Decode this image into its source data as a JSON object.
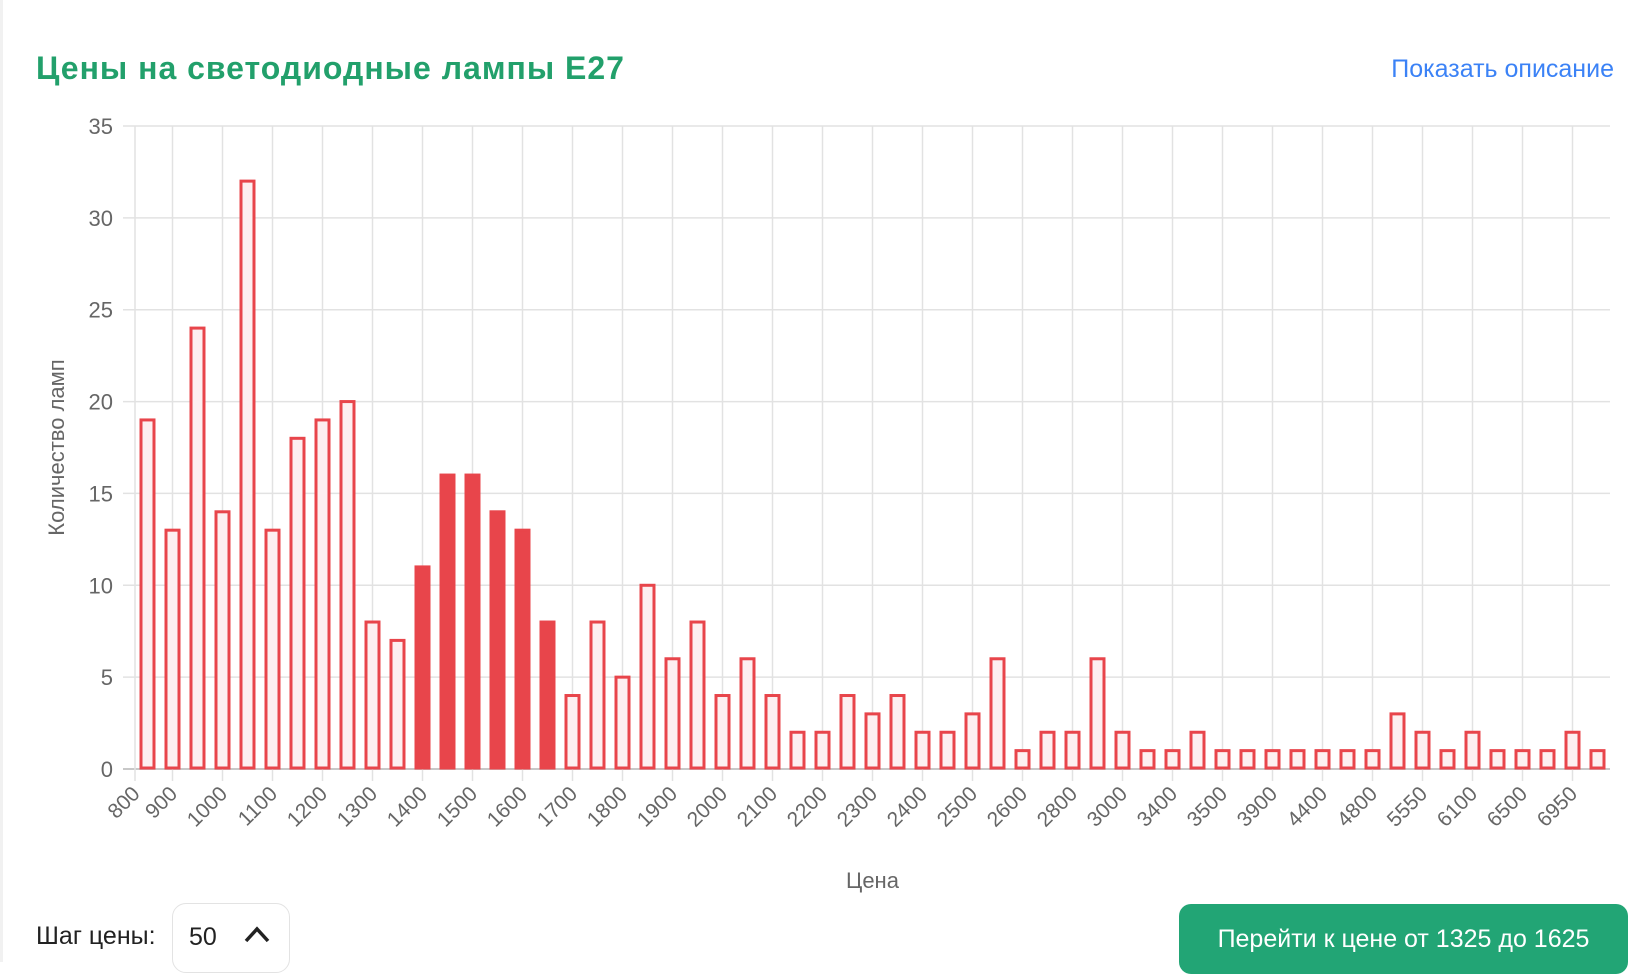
{
  "header": {
    "title": "Цены на светодиодные лампы E27",
    "show_description_link": "Показать описание"
  },
  "controls": {
    "step_label": "Шаг цены:",
    "step_value": "50",
    "go_button_label": "Перейти к цене от 1325 до 1625"
  },
  "colors": {
    "title": "#22a06b",
    "link": "#3b82f6",
    "bar_border": "#e8454b",
    "bar_fill": "#fdeff0",
    "bar_selected_fill": "#e8454b",
    "button": "#22a575",
    "grid": "#e2e2e2"
  },
  "chart_data": {
    "type": "bar",
    "title": "Цены на светодиодные лампы E27",
    "xlabel": "Цена",
    "ylabel": "Количество ламп",
    "ylim": [
      0,
      35
    ],
    "y_ticks": [
      0,
      5,
      10,
      15,
      20,
      25,
      30,
      35
    ],
    "grid": true,
    "x_tick_labels": [
      "800",
      "900",
      "1000",
      "1100",
      "1200",
      "1300",
      "1400",
      "1500",
      "1600",
      "1700",
      "1800",
      "1900",
      "2000",
      "2100",
      "2200",
      "2300",
      "2400",
      "2500",
      "2600",
      "2800",
      "3000",
      "3400",
      "3500",
      "3900",
      "4400",
      "4800",
      "5550",
      "6100",
      "6500",
      "6950"
    ],
    "values": [
      19,
      13,
      24,
      14,
      32,
      13,
      18,
      19,
      20,
      8,
      7,
      11,
      16,
      16,
      14,
      13,
      8,
      4,
      8,
      5,
      10,
      6,
      8,
      4,
      6,
      4,
      2,
      2,
      4,
      3,
      4,
      2,
      2,
      3,
      6,
      1,
      2,
      2,
      6,
      2,
      1,
      1,
      2,
      1,
      1,
      1,
      1,
      1,
      1,
      1,
      3,
      2,
      1,
      2,
      1,
      1,
      1,
      2,
      1
    ],
    "selected_bar_indices": [
      11,
      12,
      13,
      14,
      15,
      16
    ],
    "selected_range": [
      1325,
      1625
    ]
  }
}
